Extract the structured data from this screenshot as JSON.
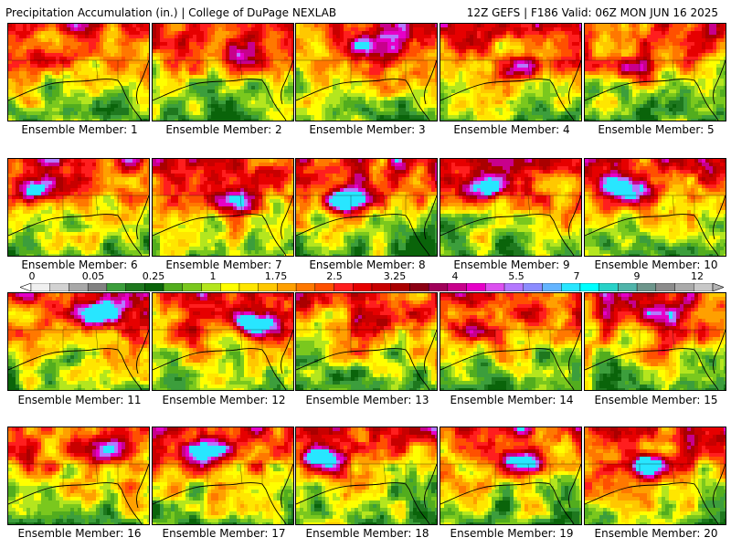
{
  "header": {
    "left": "Precipitation Accumulation (in.) | College of DuPage NEXLAB",
    "right": "12Z GEFS | F186 Valid: 06Z MON JUN 16 2025"
  },
  "member_label_prefix": "Ensemble Member: ",
  "members": [
    1,
    2,
    3,
    4,
    5,
    6,
    7,
    8,
    9,
    10,
    11,
    12,
    13,
    14,
    15,
    16,
    17,
    18,
    19,
    20
  ],
  "color_scale": {
    "labels": [
      "0",
      "0.05",
      "0.25",
      "1",
      "1.75",
      "2.5",
      "3.25",
      "4",
      "5.5",
      "7",
      "9",
      "12"
    ],
    "colors": [
      "#f0f0f0",
      "#d2d2d2",
      "#a8a8a8",
      "#828282",
      "#3c9e3c",
      "#1e781e",
      "#0a640a",
      "#52ad1e",
      "#7ac81e",
      "#b4e61e",
      "#ffff00",
      "#ffe600",
      "#ffc800",
      "#ffa000",
      "#ff7800",
      "#ff5000",
      "#ff1e1e",
      "#e60000",
      "#c80000",
      "#aa0000",
      "#8c0014",
      "#a0005a",
      "#c8008c",
      "#e600c8",
      "#dc50f0",
      "#b478ff",
      "#8c8cff",
      "#64b4ff",
      "#28e6ff",
      "#00ffff",
      "#28d2c8",
      "#50b4aa",
      "#6e968c",
      "#8c8c8c",
      "#aaaaaa",
      "#c8c8c8"
    ]
  }
}
